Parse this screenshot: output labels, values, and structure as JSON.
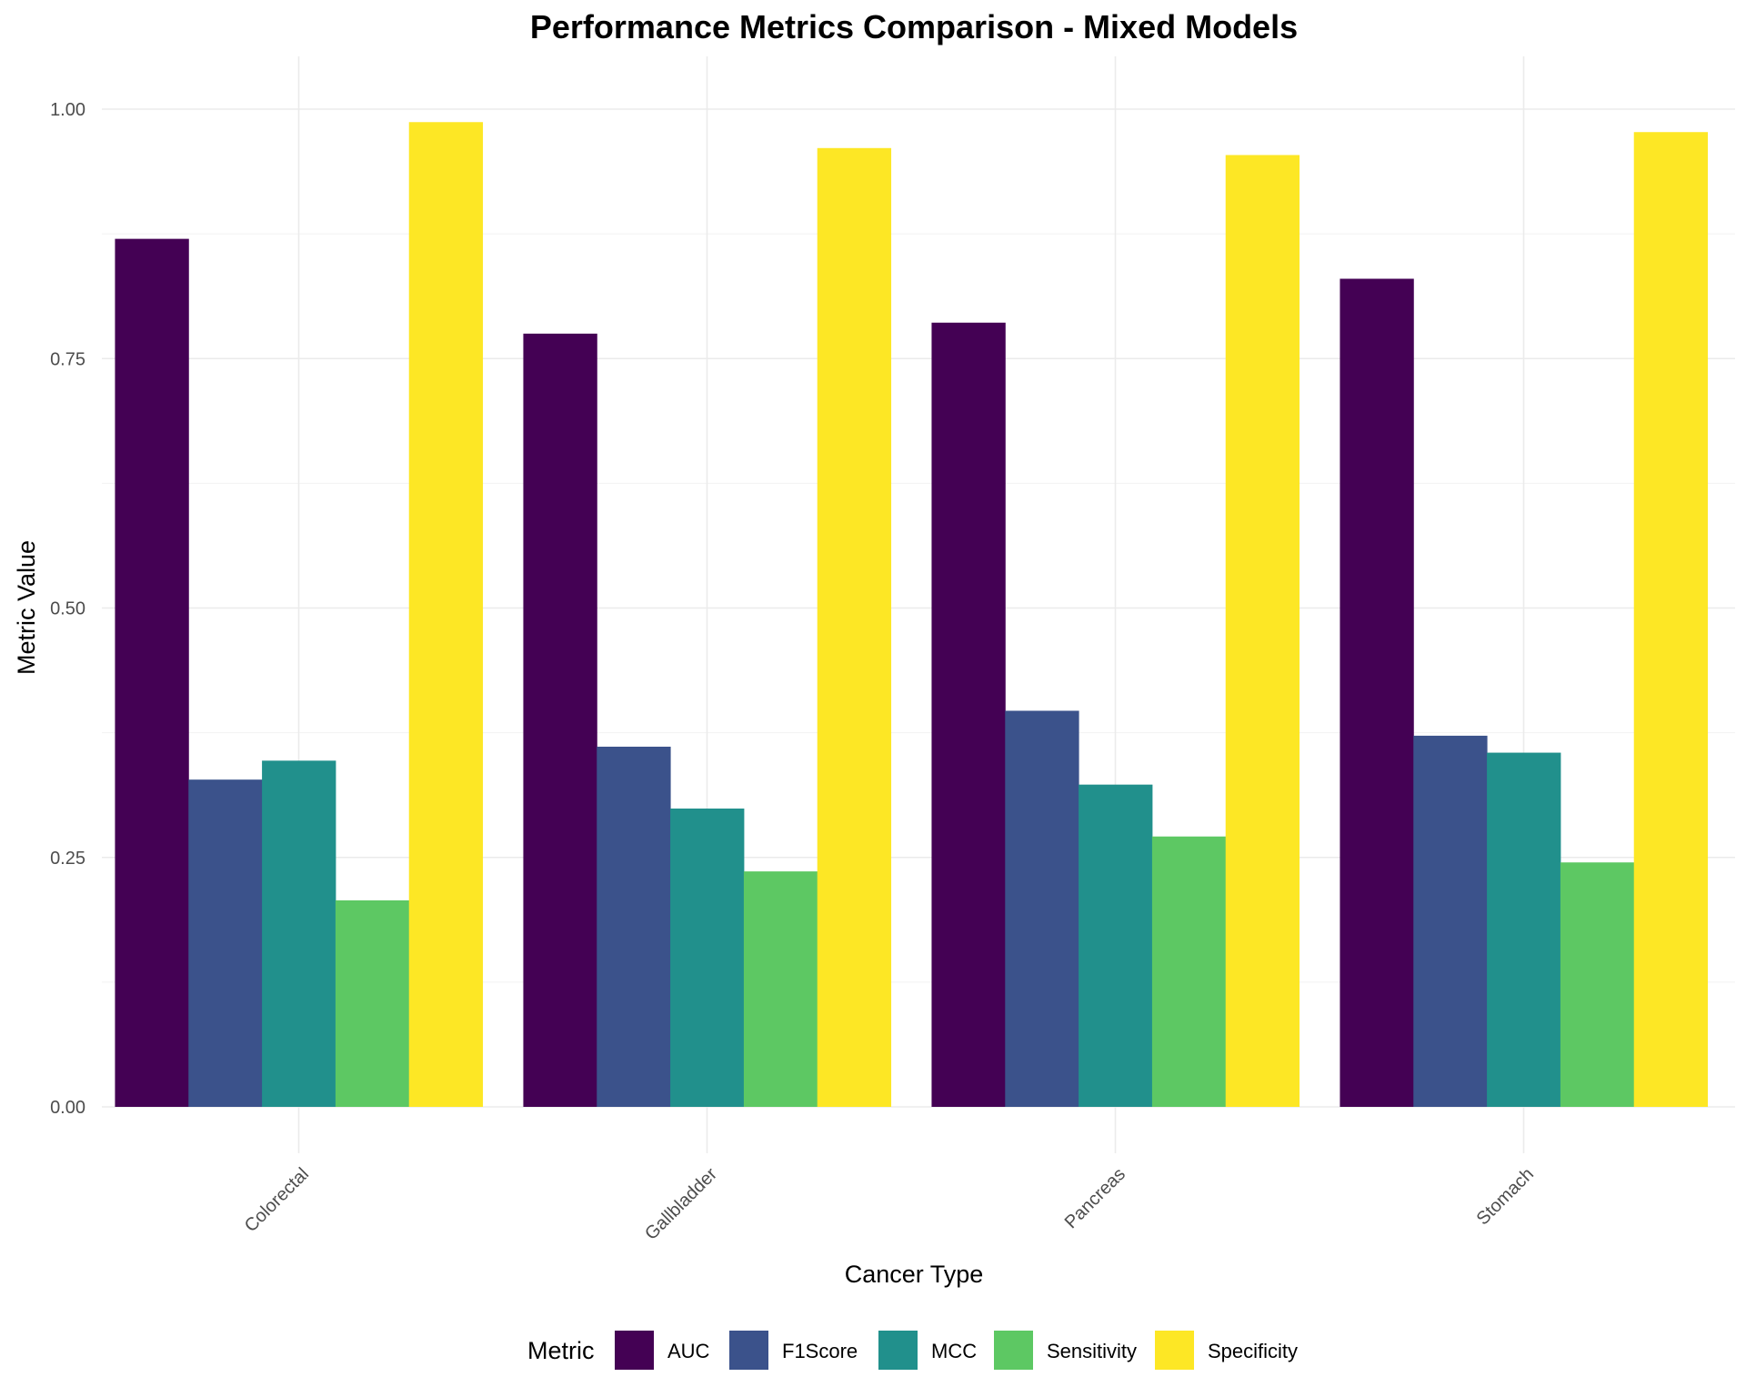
{
  "chart_data": {
    "type": "bar",
    "title": "Performance Metrics Comparison - Mixed Models",
    "xlabel": "Cancer Type",
    "ylabel": "Metric Value",
    "ylim": [
      0,
      1.05
    ],
    "yticks": [
      "0.00",
      "0.25",
      "0.50",
      "0.75",
      "1.00"
    ],
    "categories": [
      "Colorectal",
      "Gallbladder",
      "Pancreas",
      "Stomach"
    ],
    "legend_title": "Metric",
    "legend_position": "bottom",
    "grid": true,
    "series": [
      {
        "name": "AUC",
        "color": "#440154",
        "values": [
          0.87,
          0.775,
          0.786,
          0.83
        ]
      },
      {
        "name": "F1Score",
        "color": "#3B528B",
        "values": [
          0.328,
          0.361,
          0.397,
          0.372
        ]
      },
      {
        "name": "MCC",
        "color": "#21908C",
        "values": [
          0.347,
          0.299,
          0.323,
          0.355
        ]
      },
      {
        "name": "Sensitivity",
        "color": "#5DC863",
        "values": [
          0.207,
          0.236,
          0.271,
          0.245
        ]
      },
      {
        "name": "Specificity",
        "color": "#FDE725",
        "values": [
          0.987,
          0.961,
          0.954,
          0.977
        ]
      }
    ]
  }
}
